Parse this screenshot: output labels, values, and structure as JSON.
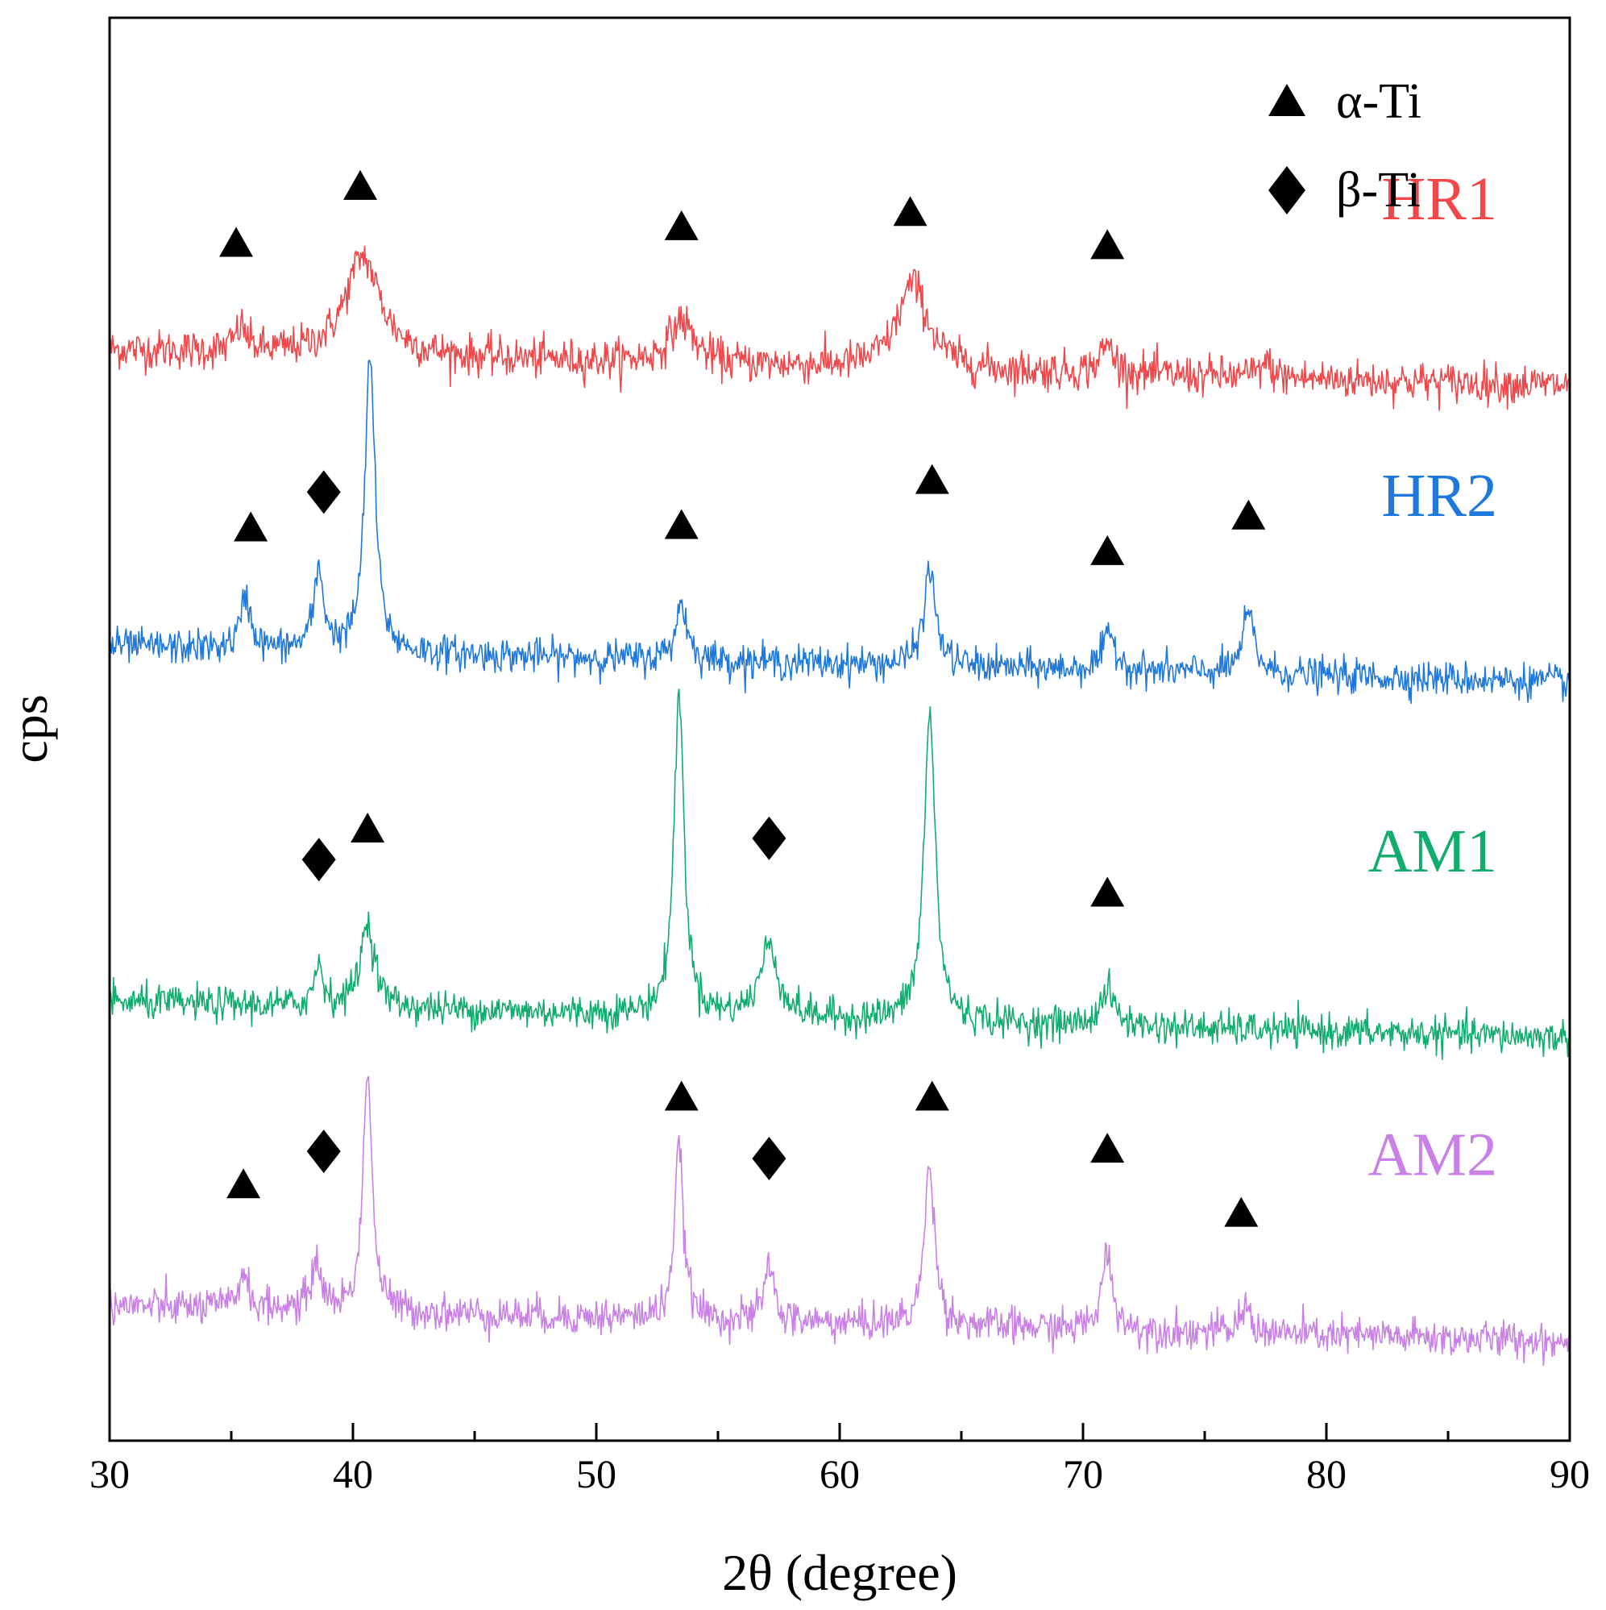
{
  "chart_data": {
    "type": "line",
    "title": "",
    "xlabel": "2θ (degree)",
    "ylabel": "cps",
    "xlim": [
      30,
      90
    ],
    "ylim": [
      0,
      6.0
    ],
    "x_ticks": [
      30,
      40,
      50,
      60,
      70,
      80,
      90
    ],
    "x_tick_labels": [
      "30",
      "40",
      "50",
      "60",
      "70",
      "80",
      "90"
    ],
    "x_minor_tick_step": 5,
    "y_ticks_shown": false,
    "grid": false,
    "legend": {
      "placement": "top-right",
      "entries": [
        {
          "marker": "triangle",
          "label": "α-Ti"
        },
        {
          "marker": "diamond",
          "label": "β-Ti"
        }
      ]
    },
    "series": [
      {
        "name": "HR1",
        "color": "#f0474a",
        "baseline": 4.6,
        "noise": 0.075,
        "peaks": [
          {
            "x": 35.4,
            "height": 0.1,
            "width": 0.3
          },
          {
            "x": 40.4,
            "height": 0.42,
            "width": 0.85
          },
          {
            "x": 53.5,
            "height": 0.18,
            "width": 0.6
          },
          {
            "x": 63.0,
            "height": 0.36,
            "width": 0.75
          },
          {
            "x": 71.0,
            "height": 0.12,
            "width": 0.35
          },
          {
            "x": 77.5,
            "height": 0.06,
            "width": 0.3
          }
        ],
        "markers": [
          {
            "x": 35.2,
            "y": 5.05,
            "shape": "triangle"
          },
          {
            "x": 40.3,
            "y": 5.29,
            "shape": "triangle"
          },
          {
            "x": 53.5,
            "y": 5.12,
            "shape": "triangle"
          },
          {
            "x": 62.9,
            "y": 5.18,
            "shape": "triangle"
          },
          {
            "x": 71.0,
            "y": 5.04,
            "shape": "triangle"
          }
        ]
      },
      {
        "name": "HR2",
        "color": "#1f78dc",
        "baseline": 3.35,
        "noise": 0.065,
        "peaks": [
          {
            "x": 35.6,
            "height": 0.22,
            "width": 0.25
          },
          {
            "x": 38.6,
            "height": 0.33,
            "width": 0.25
          },
          {
            "x": 40.7,
            "height": 1.25,
            "width": 0.25
          },
          {
            "x": 53.5,
            "height": 0.24,
            "width": 0.28
          },
          {
            "x": 63.7,
            "height": 0.4,
            "width": 0.3
          },
          {
            "x": 71.1,
            "height": 0.15,
            "width": 0.32
          },
          {
            "x": 76.8,
            "height": 0.25,
            "width": 0.3
          }
        ],
        "markers": [
          {
            "x": 35.8,
            "y": 3.85,
            "shape": "triangle"
          },
          {
            "x": 38.8,
            "y": 4.0,
            "shape": "diamond"
          },
          {
            "x": 53.5,
            "y": 3.86,
            "shape": "triangle"
          },
          {
            "x": 63.8,
            "y": 4.05,
            "shape": "triangle"
          },
          {
            "x": 71.0,
            "y": 3.75,
            "shape": "triangle"
          },
          {
            "x": 76.8,
            "y": 3.9,
            "shape": "triangle"
          }
        ]
      },
      {
        "name": "AM1",
        "color": "#12ad6e",
        "baseline": 1.85,
        "noise": 0.065,
        "peaks": [
          {
            "x": 38.6,
            "height": 0.18,
            "width": 0.22
          },
          {
            "x": 40.6,
            "height": 0.36,
            "width": 0.35
          },
          {
            "x": 53.4,
            "height": 1.35,
            "width": 0.25
          },
          {
            "x": 57.1,
            "height": 0.3,
            "width": 0.45
          },
          {
            "x": 63.7,
            "height": 1.3,
            "width": 0.28
          },
          {
            "x": 71.0,
            "height": 0.15,
            "width": 0.35
          }
        ],
        "markers": [
          {
            "x": 38.6,
            "y": 2.45,
            "shape": "diamond"
          },
          {
            "x": 40.6,
            "y": 2.58,
            "shape": "triangle"
          },
          {
            "x": 57.1,
            "y": 2.54,
            "shape": "diamond"
          },
          {
            "x": 71.0,
            "y": 2.31,
            "shape": "triangle"
          }
        ]
      },
      {
        "name": "AM2",
        "color": "#c981e6",
        "baseline": 0.57,
        "noise": 0.07,
        "peaks": [
          {
            "x": 35.5,
            "height": 0.16,
            "width": 0.22
          },
          {
            "x": 38.5,
            "height": 0.2,
            "width": 0.25
          },
          {
            "x": 40.6,
            "height": 1.03,
            "width": 0.22
          },
          {
            "x": 53.4,
            "height": 0.72,
            "width": 0.22
          },
          {
            "x": 57.1,
            "height": 0.25,
            "width": 0.22
          },
          {
            "x": 63.7,
            "height": 0.68,
            "width": 0.25
          },
          {
            "x": 71.0,
            "height": 0.33,
            "width": 0.25
          },
          {
            "x": 76.7,
            "height": 0.11,
            "width": 0.25
          }
        ],
        "markers": [
          {
            "x": 35.5,
            "y": 1.08,
            "shape": "triangle"
          },
          {
            "x": 38.8,
            "y": 1.22,
            "shape": "diamond"
          },
          {
            "x": 53.5,
            "y": 1.45,
            "shape": "triangle"
          },
          {
            "x": 57.1,
            "y": 1.19,
            "shape": "diamond"
          },
          {
            "x": 63.8,
            "y": 1.45,
            "shape": "triangle"
          },
          {
            "x": 71.0,
            "y": 1.23,
            "shape": "triangle"
          },
          {
            "x": 76.5,
            "y": 0.96,
            "shape": "triangle"
          }
        ]
      }
    ]
  }
}
